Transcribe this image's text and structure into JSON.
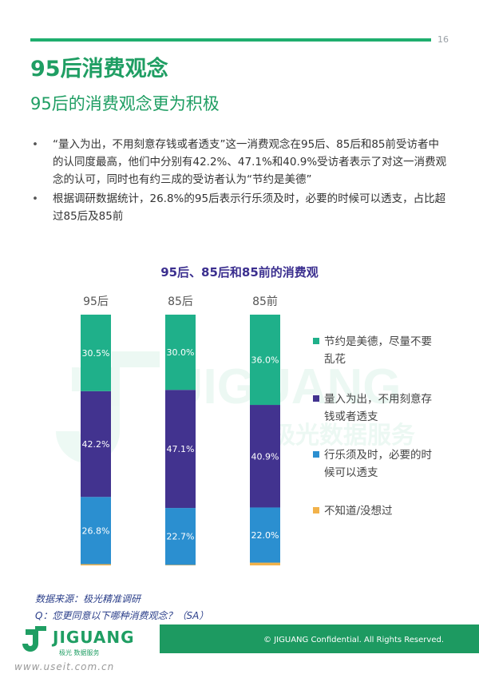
{
  "page": {
    "number": "16",
    "title": "95后消费观念",
    "subtitle": "95后的消费观念更为积极",
    "bullets": [
      "“量入为出，不用刻意存钱或者透支”这一消费观念在95后、85后和85前受访者中的认同度最高，他们中分别有42.2%、47.1%和40.9%受访者表示了对这一消费观念的认可，同时也有约三成的受访者认为“节约是美德”",
      "根据调研数据统计，26.8%的95后表示行乐须及时，必要的时候可以透支，占比超过85后及85前"
    ],
    "bullet_symbol": "•"
  },
  "watermark": {
    "brand": "JIGUANG",
    "tagline": "极光数据服务"
  },
  "chart_data": {
    "type": "bar",
    "stacked": true,
    "percent": true,
    "title": "95后、85后和85前的消费观",
    "categories": [
      "95后",
      "85后",
      "85前"
    ],
    "series": [
      {
        "name": "不知道/没想过",
        "color": "#f2b24a",
        "values": [
          0.5,
          0.2,
          1.1
        ],
        "labels": [
          "",
          "",
          ""
        ]
      },
      {
        "name": "行乐须及时，必要的时候可以透支",
        "color": "#2b8fd0",
        "values": [
          26.8,
          22.7,
          22.0
        ],
        "labels": [
          "26.8%",
          "22.7%",
          "22.0%"
        ]
      },
      {
        "name": "量入为出，不用刻意存钱或者透支",
        "color": "#42338f",
        "values": [
          42.2,
          47.1,
          40.9
        ],
        "labels": [
          "42.2%",
          "47.1%",
          "40.9%"
        ]
      },
      {
        "name": "节约是美德，尽量不要乱花",
        "color": "#1fb08a",
        "values": [
          30.5,
          30.0,
          36.0
        ],
        "labels": [
          "30.5%",
          "30.0%",
          "36.0%"
        ]
      }
    ],
    "legend": [
      {
        "lines": [
          "节约是美德，尽量不要",
          "乱花"
        ],
        "color": "#1fb08a"
      },
      {
        "lines": [
          "量入为出，不用刻意存",
          "钱或者透支"
        ],
        "color": "#42338f"
      },
      {
        "lines": [
          "行乐须及时，必要的时",
          "候可以透支"
        ],
        "color": "#2b8fd0"
      },
      {
        "lines": [
          "不知道/没想过"
        ],
        "color": "#f2b24a"
      }
    ],
    "legend_position": "right",
    "ylim": [
      0,
      100
    ],
    "grid": false
  },
  "footer": {
    "source": "数据来源：极光精准调研",
    "question": "Q：您更同意以下哪种消费观念？（SA）",
    "logo_text": "JIGUANG",
    "logo_tag": "极光 数据服务",
    "copyright": "© JIGUANG Confidential. All Rights Reserved.",
    "site": "www.useit.com.cn"
  }
}
